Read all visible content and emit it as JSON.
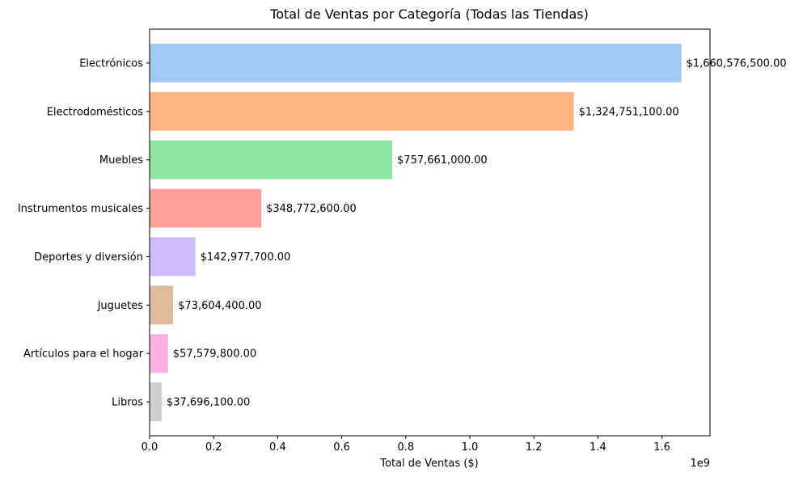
{
  "chart_data": {
    "type": "bar",
    "orientation": "horizontal",
    "title": "Total de Ventas por Categoría (Todas las Tiendas)",
    "xlabel": "Total de Ventas ($)",
    "ylabel": "",
    "x_scale_label": "1e9",
    "xlim": [
      0,
      1.75
    ],
    "x_ticks": [
      0,
      0.2,
      0.4,
      0.6,
      0.8,
      1.0,
      1.2,
      1.4,
      1.6
    ],
    "x_tick_labels": [
      "0.0",
      "0.2",
      "0.4",
      "0.6",
      "0.8",
      "1.0",
      "1.2",
      "1.4",
      "1.6"
    ],
    "grid": false,
    "legend": "none",
    "categories": [
      "Electrónicos",
      "Electrodomésticos",
      "Muebles",
      "Instrumentos musicales",
      "Deportes y diversión",
      "Juguetes",
      "Artículos para el hogar",
      "Libros"
    ],
    "values": [
      1660576500,
      1324751100,
      757661000,
      348772600,
      142977700,
      73604400,
      57579800,
      37696100
    ],
    "value_labels": [
      "$1,660,576,500.00",
      "$1,324,751,100.00",
      "$757,661,000.00",
      "$348,772,600.00",
      "$142,977,700.00",
      "$73,604,400.00",
      "$57,579,800.00",
      "$37,696,100.00"
    ],
    "colors": [
      "#a1c9f4",
      "#ffb482",
      "#8de5a1",
      "#ff9f9b",
      "#d0bbff",
      "#debb9b",
      "#fab0e4",
      "#cfcfcf"
    ]
  }
}
